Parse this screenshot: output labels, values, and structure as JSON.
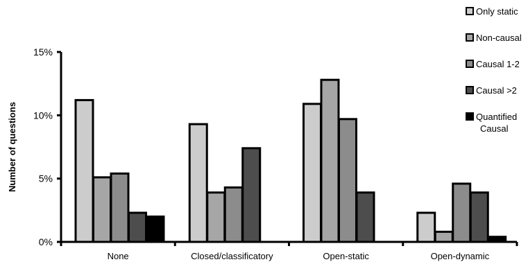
{
  "chart_data": {
    "type": "bar",
    "title": "",
    "xlabel": "",
    "ylabel": "Number of questions",
    "ylim": [
      0,
      15
    ],
    "yticks": [
      0,
      5,
      10,
      15
    ],
    "ytick_labels": [
      "0%",
      "5%",
      "10%",
      "15%"
    ],
    "grid": false,
    "legend_position": "top-right",
    "categories": [
      "None",
      "Closed/classificatory",
      "Open-static",
      "Open-dynamic"
    ],
    "series": [
      {
        "name": "Only static",
        "color": "#cccccc",
        "values": [
          11.2,
          9.3,
          10.9,
          2.3
        ]
      },
      {
        "name": "Non-causal",
        "color": "#a6a6a6",
        "values": [
          5.1,
          3.9,
          12.8,
          0.8
        ]
      },
      {
        "name": "Causal 1-2",
        "color": "#8c8c8c",
        "values": [
          5.4,
          4.3,
          9.7,
          4.6
        ]
      },
      {
        "name": "Causal >2",
        "color": "#4d4d4d",
        "values": [
          2.3,
          7.4,
          3.9,
          3.9
        ]
      },
      {
        "name": "Quantified Causal",
        "legend_lines": [
          "Quantified",
          "Causal"
        ],
        "color": "#000000",
        "values": [
          2.0,
          0,
          0,
          0.4
        ]
      }
    ]
  }
}
